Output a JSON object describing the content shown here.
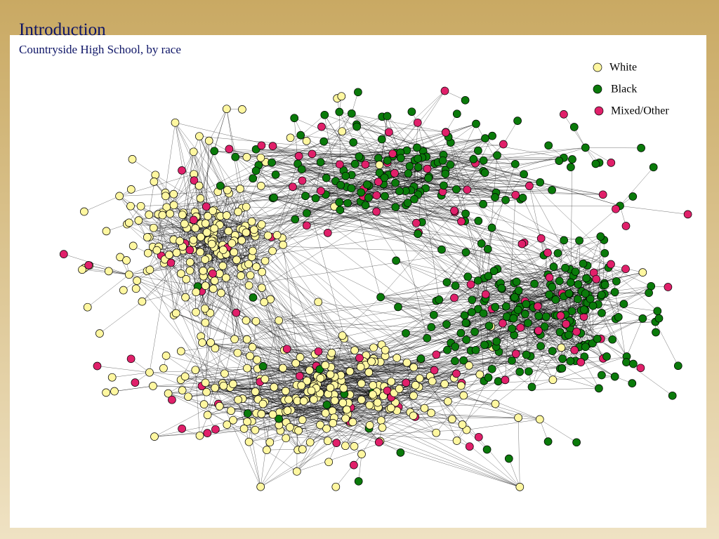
{
  "header": {
    "title": "Introduction",
    "subtitle": "Countryside High School, by race"
  },
  "legend": {
    "items": [
      "White",
      "Black",
      "Mixed/Other"
    ]
  }
}
